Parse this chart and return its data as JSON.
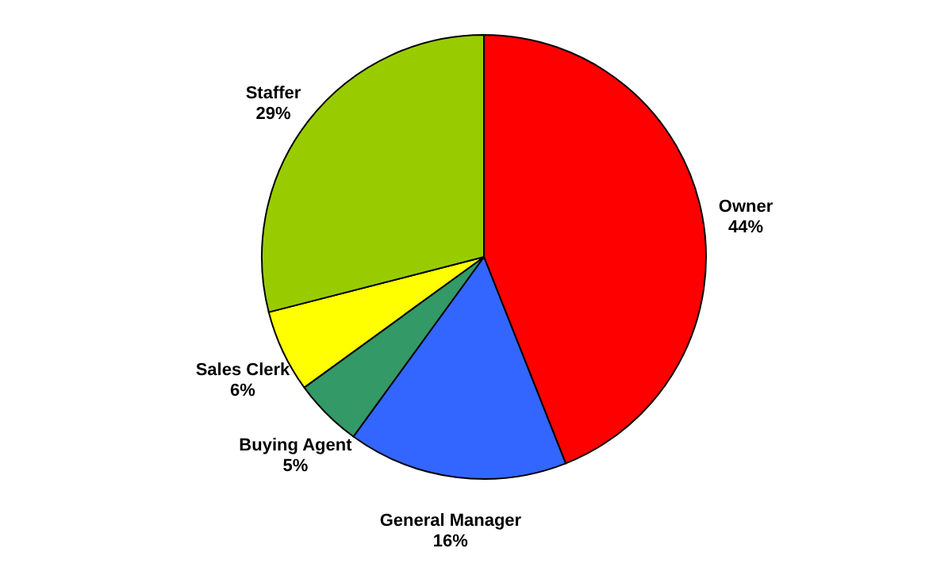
{
  "chart_data": {
    "type": "pie",
    "categories": [
      "Owner",
      "General Manager",
      "Buying Agent",
      "Sales Clerk",
      "Staffer"
    ],
    "values": [
      44,
      16,
      5,
      6,
      29
    ],
    "value_labels": [
      "44%",
      "16%",
      "5%",
      "6%",
      "29%"
    ],
    "colors": [
      "#ff0000",
      "#3366ff",
      "#339966",
      "#ffff00",
      "#99cc00"
    ]
  }
}
